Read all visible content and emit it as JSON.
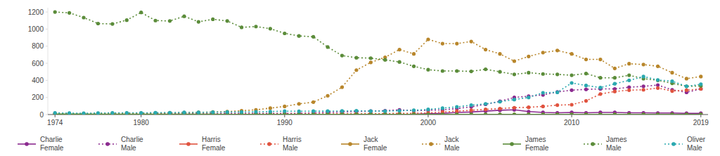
{
  "chart_data": {
    "type": "line",
    "x": [
      1974,
      1975,
      1976,
      1977,
      1978,
      1979,
      1980,
      1981,
      1982,
      1983,
      1984,
      1985,
      1986,
      1987,
      1988,
      1989,
      1990,
      1991,
      1992,
      1993,
      1994,
      1995,
      1996,
      1997,
      1998,
      1999,
      2000,
      2001,
      2002,
      2003,
      2004,
      2005,
      2006,
      2007,
      2008,
      2009,
      2010,
      2011,
      2012,
      2013,
      2014,
      2015,
      2016,
      2017,
      2018,
      2019
    ],
    "xlim": [
      1973.5,
      2019.5
    ],
    "xticks": [
      1974,
      1980,
      1990,
      2000,
      2010,
      2019
    ],
    "ylim": [
      0,
      1250
    ],
    "yticks": [
      0,
      200,
      400,
      600,
      800,
      1000,
      1200
    ],
    "grid": false,
    "legend": "bottom",
    "series": [
      {
        "name": "Charlie Female",
        "color": "#8b2a8f",
        "marker": "circle",
        "line_style": "solid",
        "values": [
          0,
          0,
          0,
          0,
          0,
          0,
          0,
          0,
          0,
          0,
          0,
          0,
          0,
          0,
          0,
          0,
          0,
          0,
          0,
          0,
          0,
          0,
          0,
          0,
          2,
          4,
          10,
          15,
          25,
          30,
          40,
          50,
          55,
          35,
          25,
          20,
          25,
          20,
          25,
          25,
          20,
          20,
          18,
          18,
          15,
          15
        ]
      },
      {
        "name": "Charlie Male",
        "color": "#8b2a8f",
        "marker": "circle",
        "line_style": "dotted",
        "values": [
          8,
          8,
          6,
          8,
          8,
          10,
          10,
          10,
          12,
          12,
          12,
          12,
          14,
          14,
          15,
          15,
          15,
          15,
          20,
          25,
          30,
          35,
          40,
          45,
          55,
          45,
          50,
          55,
          70,
          90,
          120,
          155,
          200,
          215,
          230,
          265,
          285,
          295,
          300,
          300,
          320,
          330,
          345,
          290,
          260,
          300
        ]
      },
      {
        "name": "Harris Female",
        "color": "#e0533f",
        "marker": "circle",
        "line_style": "solid",
        "values": [
          0,
          0,
          0,
          0,
          0,
          0,
          0,
          0,
          0,
          0,
          0,
          0,
          0,
          0,
          0,
          0,
          0,
          0,
          0,
          0,
          0,
          0,
          0,
          0,
          0,
          0,
          0,
          0,
          0,
          0,
          0,
          0,
          0,
          0,
          0,
          0,
          0,
          0,
          0,
          0,
          0,
          0,
          0,
          0,
          0,
          0
        ]
      },
      {
        "name": "Harris Male",
        "color": "#e0533f",
        "marker": "circle",
        "line_style": "dotted",
        "values": [
          2,
          2,
          2,
          2,
          2,
          2,
          3,
          3,
          3,
          3,
          4,
          4,
          4,
          5,
          5,
          5,
          6,
          6,
          8,
          8,
          10,
          10,
          12,
          12,
          14,
          15,
          20,
          30,
          40,
          50,
          60,
          70,
          80,
          85,
          95,
          110,
          115,
          160,
          240,
          270,
          285,
          290,
          310,
          275,
          285,
          300
        ]
      },
      {
        "name": "Jack Female",
        "color": "#b8862b",
        "marker": "circle",
        "line_style": "solid",
        "values": [
          0,
          0,
          0,
          0,
          0,
          0,
          0,
          0,
          0,
          0,
          0,
          0,
          0,
          0,
          0,
          0,
          0,
          0,
          0,
          0,
          0,
          0,
          0,
          0,
          0,
          0,
          0,
          0,
          0,
          0,
          0,
          0,
          0,
          0,
          0,
          0,
          0,
          0,
          0,
          0,
          0,
          0,
          0,
          0,
          0,
          0
        ]
      },
      {
        "name": "Jack Male",
        "color": "#b8862b",
        "marker": "circle",
        "line_style": "dotted",
        "values": [
          10,
          8,
          10,
          12,
          12,
          15,
          15,
          18,
          20,
          22,
          25,
          30,
          35,
          45,
          55,
          75,
          95,
          125,
          145,
          220,
          320,
          520,
          610,
          670,
          760,
          710,
          880,
          830,
          830,
          855,
          760,
          710,
          625,
          680,
          725,
          750,
          710,
          645,
          645,
          540,
          595,
          585,
          565,
          490,
          420,
          445
        ]
      },
      {
        "name": "James Female",
        "color": "#5b8c3a",
        "marker": "circle",
        "line_style": "solid",
        "values": [
          5,
          5,
          5,
          4,
          4,
          4,
          4,
          3,
          3,
          3,
          3,
          3,
          2,
          2,
          2,
          2,
          2,
          2,
          2,
          2,
          1,
          1,
          1,
          1,
          1,
          1,
          1,
          1,
          1,
          1,
          1,
          1,
          1,
          1,
          1,
          1,
          1,
          1,
          1,
          1,
          1,
          1,
          1,
          1,
          1,
          1
        ]
      },
      {
        "name": "James Male",
        "color": "#5b8c3a",
        "marker": "circle",
        "line_style": "dotted",
        "values": [
          1200,
          1190,
          1135,
          1065,
          1060,
          1105,
          1195,
          1100,
          1095,
          1150,
          1085,
          1115,
          1095,
          1020,
          1030,
          1005,
          950,
          920,
          910,
          790,
          690,
          665,
          660,
          640,
          615,
          565,
          525,
          510,
          510,
          505,
          530,
          500,
          470,
          490,
          475,
          470,
          460,
          480,
          430,
          430,
          460,
          420,
          400,
          365,
          330,
          335
        ]
      },
      {
        "name": "Oliver Male",
        "color": "#2aa9b0",
        "marker": "circle",
        "line_style": "dotted",
        "values": [
          20,
          18,
          15,
          18,
          20,
          20,
          20,
          22,
          22,
          25,
          25,
          28,
          30,
          30,
          32,
          35,
          40,
          38,
          40,
          40,
          42,
          45,
          40,
          40,
          45,
          50,
          60,
          75,
          90,
          110,
          125,
          150,
          175,
          200,
          255,
          260,
          370,
          340,
          315,
          360,
          400,
          445,
          405,
          390,
          330,
          355
        ]
      }
    ]
  }
}
